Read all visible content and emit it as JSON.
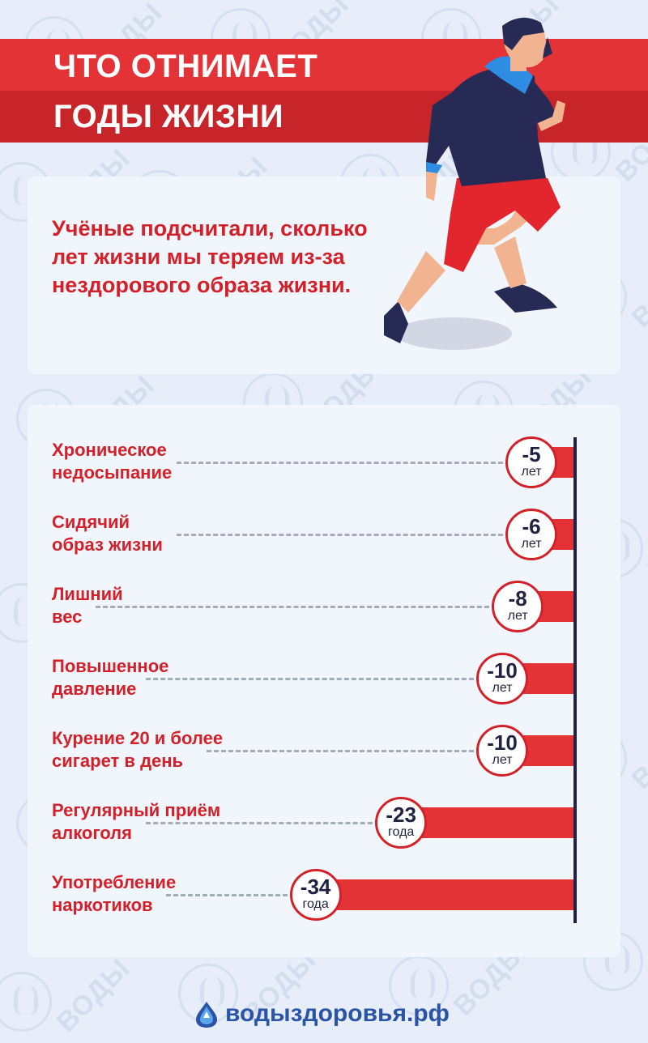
{
  "header": {
    "title_line1": "ЧТО ОТНИМАЕТ",
    "title_line2": "ГОДЫ ЖИЗНИ"
  },
  "intro": {
    "text": "Учёные подсчитали, сколько лет жизни мы теряем из-за нездорового образа жизни."
  },
  "watermark": {
    "text_line1": "ВОДЫ",
    "text_line2": "здоровья"
  },
  "chart_data": {
    "type": "bar",
    "orientation": "horizontal",
    "categories": [
      "Хроническое\nнедосыпание",
      "Сидячий\nобраз жизни",
      "Лишний\nвес",
      "Повышенное\nдавление",
      "Курение 20 и более\nсигарет в день",
      "Регулярный приём\nалкоголя",
      "Употребление\nнаркотиков"
    ],
    "values": [
      -5,
      -6,
      -8,
      -10,
      -10,
      -23,
      -34
    ],
    "labels": [
      "-5",
      "-6",
      "-8",
      "-10",
      "-10",
      "-23",
      "-34"
    ],
    "units": [
      "лет",
      "лет",
      "лет",
      "лет",
      "лет",
      "года",
      "года"
    ],
    "colors": {
      "bar": "#e43337",
      "label": "#d32029",
      "badge_text": "#1f2240"
    }
  },
  "footer": {
    "site": "водыздоровья.рф",
    "icon": "water-drop-logo-icon"
  }
}
